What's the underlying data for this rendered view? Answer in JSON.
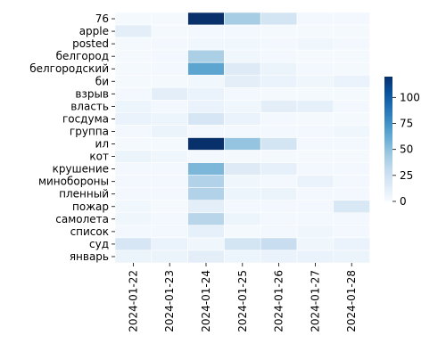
{
  "chart_data": {
    "type": "heatmap",
    "title": "",
    "xlabel": "",
    "ylabel": "",
    "x": [
      "2024-01-22",
      "2024-01-23",
      "2024-01-24",
      "2024-01-25",
      "2024-01-26",
      "2024-01-27",
      "2024-01-28"
    ],
    "y": [
      "76",
      "apple",
      "posted",
      "белгород",
      "белгородский",
      "би",
      "взрыв",
      "власть",
      "госдума",
      "группа",
      "ил",
      "кот",
      "крушение",
      "минобороны",
      "пленный",
      "пожар",
      "самолета",
      "список",
      "суд",
      "январь"
    ],
    "values": [
      [
        2,
        2,
        120,
        42,
        22,
        3,
        3
      ],
      [
        12,
        2,
        3,
        3,
        2,
        2,
        2
      ],
      [
        2,
        3,
        4,
        4,
        3,
        5,
        3
      ],
      [
        2,
        3,
        40,
        5,
        3,
        2,
        2
      ],
      [
        2,
        3,
        65,
        15,
        7,
        3,
        2
      ],
      [
        2,
        2,
        4,
        12,
        8,
        5,
        8
      ],
      [
        3,
        12,
        8,
        3,
        2,
        2,
        2
      ],
      [
        6,
        3,
        8,
        5,
        12,
        10,
        3
      ],
      [
        8,
        6,
        20,
        8,
        3,
        2,
        2
      ],
      [
        3,
        7,
        3,
        3,
        3,
        3,
        5
      ],
      [
        2,
        2,
        120,
        48,
        22,
        3,
        3
      ],
      [
        7,
        5,
        3,
        2,
        2,
        2,
        2
      ],
      [
        3,
        3,
        55,
        15,
        10,
        3,
        3
      ],
      [
        3,
        3,
        38,
        5,
        3,
        8,
        3
      ],
      [
        3,
        3,
        38,
        6,
        7,
        3,
        3
      ],
      [
        4,
        2,
        12,
        3,
        3,
        3,
        18
      ],
      [
        5,
        3,
        35,
        6,
        3,
        3,
        3
      ],
      [
        3,
        3,
        10,
        2,
        3,
        5,
        3
      ],
      [
        20,
        8,
        5,
        22,
        28,
        5,
        8
      ],
      [
        7,
        7,
        12,
        6,
        8,
        8,
        7
      ]
    ],
    "colorbar": {
      "min": 0,
      "max": 120,
      "ticks": [
        0,
        25,
        50,
        75,
        100
      ]
    },
    "colormap": [
      "#f7fbff",
      "#deebf7",
      "#c6dbef",
      "#9ecae1",
      "#6baed6",
      "#4292c6",
      "#2171b5",
      "#08519c",
      "#08306b"
    ]
  }
}
